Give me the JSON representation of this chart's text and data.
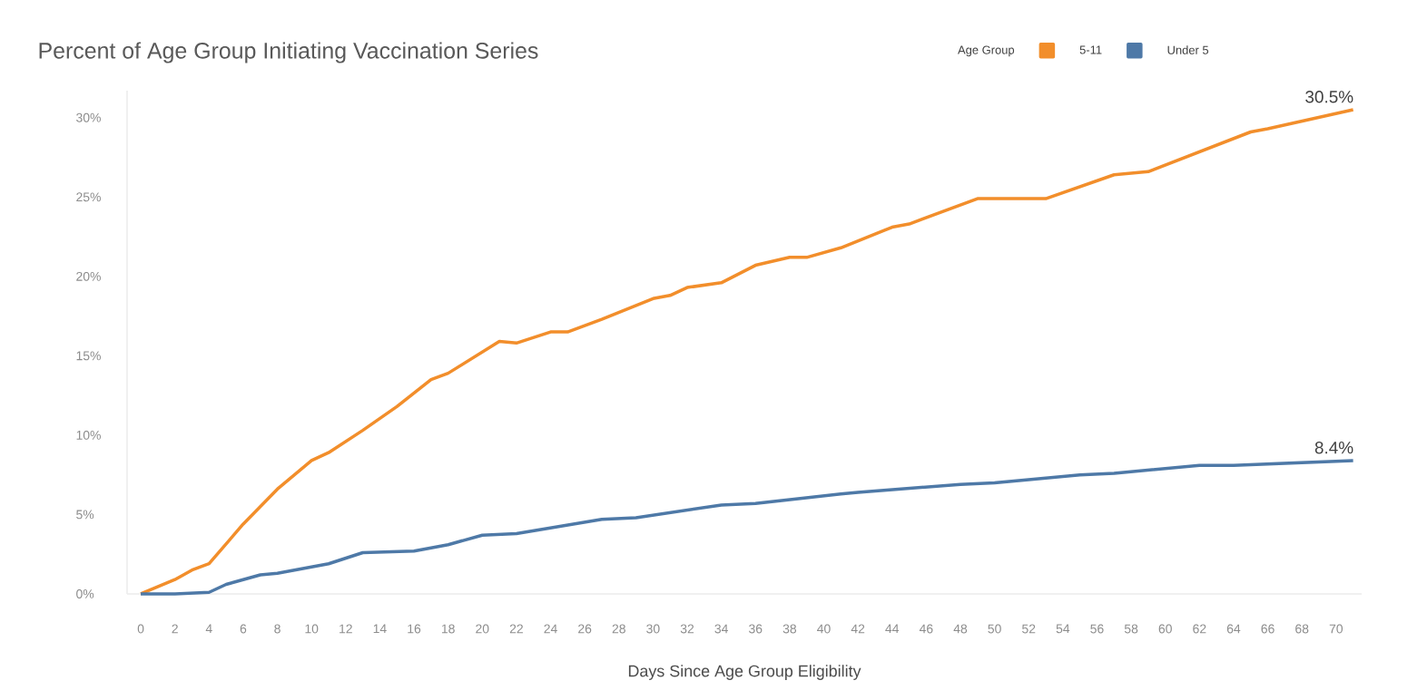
{
  "chart_data": {
    "type": "line",
    "title": "Percent of Age Group Initiating Vaccination Series",
    "xlabel": "Days Since Age Group Eligibility",
    "legend_title": "Age Group",
    "xlim": [
      -0.8,
      71.5
    ],
    "ylim": [
      0,
      31.7
    ],
    "xticks": [
      0,
      2,
      4,
      6,
      8,
      10,
      12,
      14,
      16,
      18,
      20,
      22,
      24,
      26,
      28,
      30,
      32,
      34,
      36,
      38,
      40,
      42,
      44,
      46,
      48,
      50,
      52,
      54,
      56,
      58,
      60,
      62,
      64,
      66,
      68,
      70
    ],
    "yticks": [
      {
        "value": 0,
        "label": "0%"
      },
      {
        "value": 5,
        "label": "5%"
      },
      {
        "value": 10,
        "label": "10%"
      },
      {
        "value": 15,
        "label": "15%"
      },
      {
        "value": 20,
        "label": "20%"
      },
      {
        "value": 25,
        "label": "25%"
      },
      {
        "value": 30,
        "label": "30%"
      }
    ],
    "grid": false,
    "legend": "top right",
    "marker": "none",
    "line_style": "solid",
    "series": [
      {
        "name": "5-11",
        "color": "#f28e2b",
        "x": [
          0,
          2,
          3,
          4,
          6,
          8,
          10,
          11,
          13,
          15,
          17,
          18,
          21,
          22,
          24,
          25,
          27,
          30,
          31,
          32,
          34,
          36,
          38,
          39,
          41,
          44,
          45,
          49,
          53,
          57,
          59,
          65,
          66,
          71
        ],
        "values": [
          0,
          0.9,
          1.5,
          1.9,
          4.4,
          6.6,
          8.4,
          8.9,
          10.3,
          11.8,
          13.5,
          13.9,
          15.9,
          15.8,
          16.5,
          16.5,
          17.3,
          18.6,
          18.8,
          19.3,
          19.6,
          20.7,
          21.2,
          21.2,
          21.8,
          23.1,
          23.3,
          24.9,
          24.9,
          26.4,
          26.6,
          29.1,
          29.3,
          30.5
        ]
      },
      {
        "name": "Under 5",
        "color": "#4e79a7",
        "x": [
          0,
          2,
          4,
          5,
          7,
          8,
          11,
          13,
          16,
          18,
          20,
          22,
          27,
          29,
          34,
          36,
          41,
          42,
          48,
          50,
          55,
          57,
          62,
          64,
          71
        ],
        "values": [
          0,
          0,
          0.1,
          0.6,
          1.2,
          1.3,
          1.9,
          2.6,
          2.7,
          3.1,
          3.7,
          3.8,
          4.7,
          4.8,
          5.6,
          5.7,
          6.3,
          6.4,
          6.9,
          7.0,
          7.5,
          7.6,
          8.1,
          8.1,
          8.4
        ]
      }
    ],
    "annotations": [
      {
        "text": "30.5%",
        "x": 71,
        "y": 30.5
      },
      {
        "text": "8.4%",
        "x": 71,
        "y": 8.4
      }
    ]
  }
}
